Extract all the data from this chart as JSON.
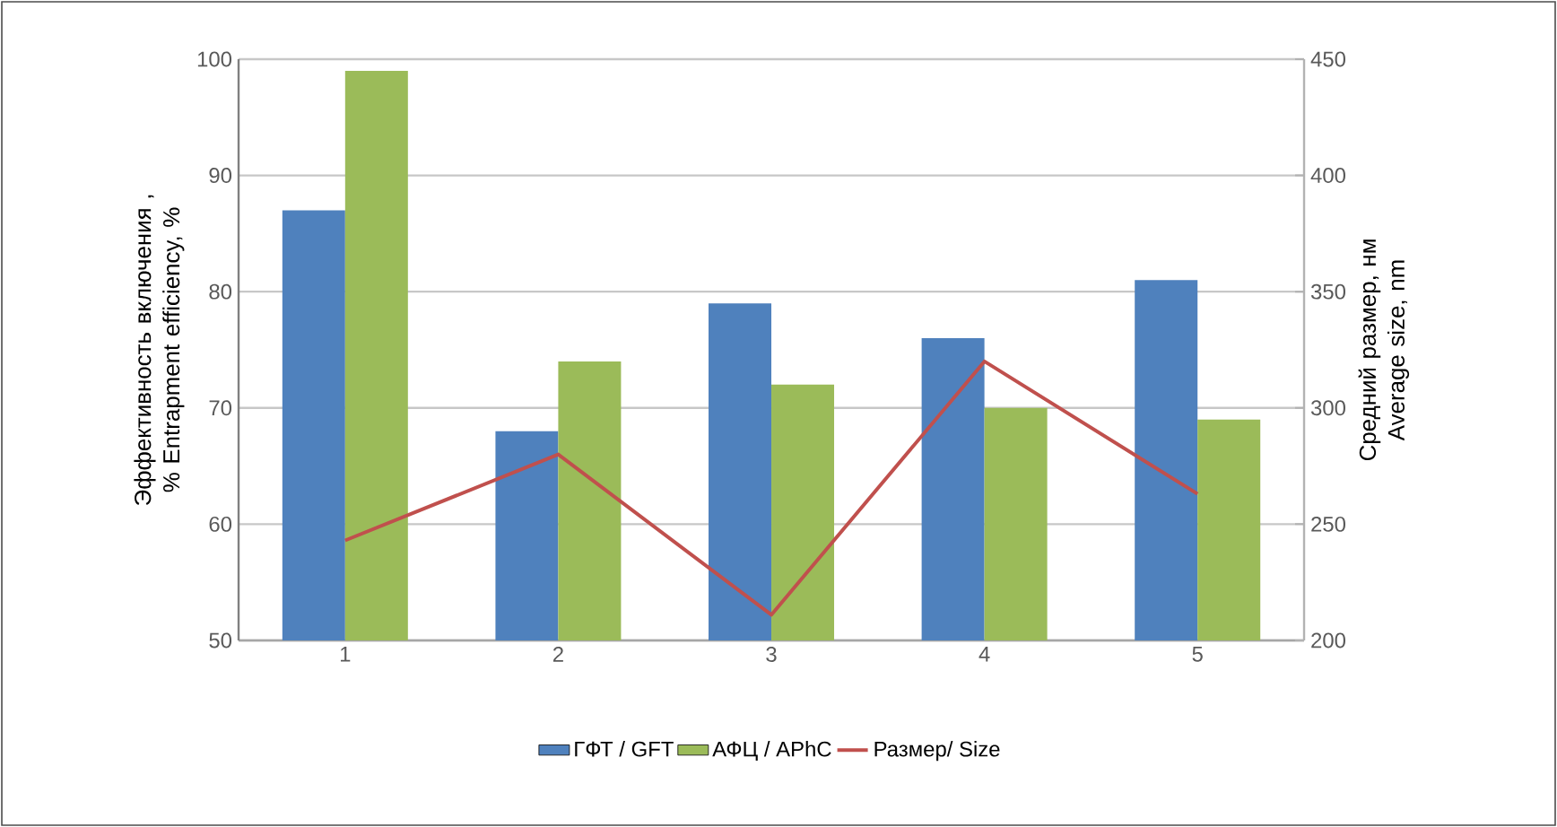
{
  "chart_data": {
    "type": "bar",
    "ylabel": "Эффективность включения , % Entrapment efficiency, %",
    "y2label": "Средний размер, нм Average size, nm",
    "categories": [
      "1",
      "2",
      "3",
      "4",
      "5"
    ],
    "series": [
      {
        "name": "ГФТ / GFT",
        "color": "#4f81bd",
        "values": [
          87,
          68,
          79,
          76,
          81
        ]
      },
      {
        "name": "АФЦ / APhC",
        "color": "#9bbb59",
        "values": [
          99,
          74,
          72,
          70,
          69
        ]
      },
      {
        "name": "Размер/ Size",
        "type": "line",
        "axis": "y2",
        "color": "#c0504d",
        "values": [
          243,
          280,
          211,
          320,
          263
        ]
      }
    ],
    "ylim": [
      50,
      100
    ],
    "yticks": [
      50,
      60,
      70,
      80,
      90,
      100
    ],
    "y2lim": [
      200,
      450
    ],
    "y2ticks": [
      200,
      250,
      300,
      350,
      400,
      450
    ],
    "grid": "y",
    "legend": "bottom",
    "marker": "none",
    "line_style": "solid"
  }
}
